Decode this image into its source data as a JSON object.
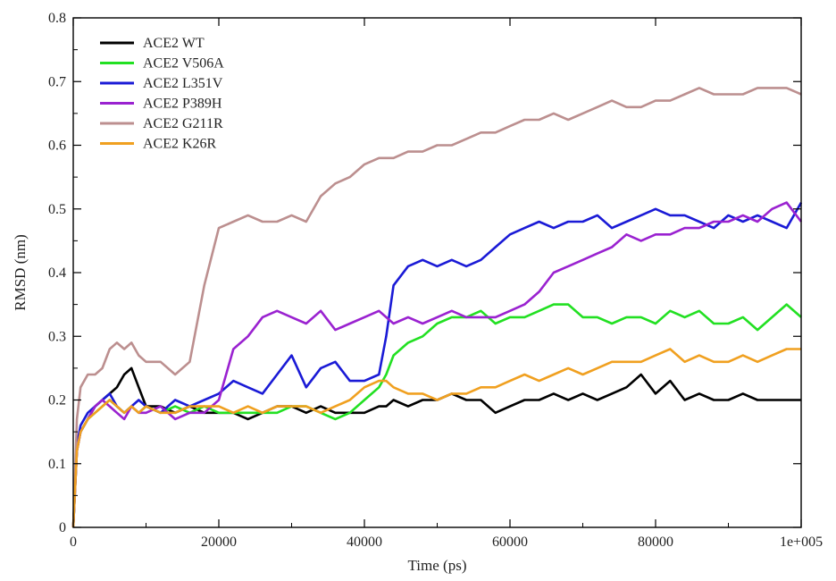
{
  "chart_data": {
    "type": "line",
    "title": "",
    "xlabel": "Time (ps)",
    "ylabel": "RMSD (nm)",
    "xlim": [
      0,
      100000
    ],
    "ylim": [
      0,
      0.8
    ],
    "x_ticks": [
      0,
      20000,
      40000,
      60000,
      80000,
      100000
    ],
    "x_tick_labels": [
      "0",
      "20000",
      "40000",
      "60000",
      "80000",
      "1e+005"
    ],
    "y_ticks": [
      0,
      0.1,
      0.2,
      0.3,
      0.4,
      0.5,
      0.6,
      0.7,
      0.8
    ],
    "y_tick_labels": [
      "0",
      "0.1",
      "0.2",
      "0.3",
      "0.4",
      "0.5",
      "0.6",
      "0.7",
      "0.8"
    ],
    "grid": false,
    "legend_position": "top-left",
    "x": [
      0,
      500,
      1000,
      2000,
      3000,
      4000,
      5000,
      6000,
      7000,
      8000,
      9000,
      10000,
      12000,
      14000,
      16000,
      18000,
      20000,
      22000,
      24000,
      26000,
      28000,
      30000,
      32000,
      34000,
      36000,
      38000,
      40000,
      42000,
      43000,
      44000,
      46000,
      48000,
      50000,
      52000,
      54000,
      56000,
      58000,
      60000,
      62000,
      64000,
      66000,
      68000,
      70000,
      72000,
      74000,
      76000,
      78000,
      80000,
      82000,
      84000,
      86000,
      88000,
      90000,
      92000,
      94000,
      96000,
      98000,
      100000
    ],
    "series": [
      {
        "name": "ACE2 WT",
        "color": "#000000",
        "values": [
          0.0,
          0.12,
          0.15,
          0.17,
          0.19,
          0.2,
          0.21,
          0.22,
          0.24,
          0.25,
          0.22,
          0.19,
          0.19,
          0.18,
          0.19,
          0.18,
          0.18,
          0.18,
          0.17,
          0.18,
          0.19,
          0.19,
          0.18,
          0.19,
          0.18,
          0.18,
          0.18,
          0.19,
          0.19,
          0.2,
          0.19,
          0.2,
          0.2,
          0.21,
          0.2,
          0.2,
          0.18,
          0.19,
          0.2,
          0.2,
          0.21,
          0.2,
          0.21,
          0.2,
          0.21,
          0.22,
          0.24,
          0.21,
          0.23,
          0.2,
          0.21,
          0.2,
          0.2,
          0.21,
          0.2,
          0.2,
          0.2,
          0.2
        ]
      },
      {
        "name": "ACE2 V506A",
        "color": "#22e022",
        "values": [
          0.0,
          0.13,
          0.15,
          0.17,
          0.18,
          0.19,
          0.2,
          0.19,
          0.18,
          0.19,
          0.18,
          0.19,
          0.18,
          0.19,
          0.18,
          0.19,
          0.18,
          0.18,
          0.18,
          0.18,
          0.18,
          0.19,
          0.19,
          0.18,
          0.17,
          0.18,
          0.2,
          0.22,
          0.24,
          0.27,
          0.29,
          0.3,
          0.32,
          0.33,
          0.33,
          0.34,
          0.32,
          0.33,
          0.33,
          0.34,
          0.35,
          0.35,
          0.33,
          0.33,
          0.32,
          0.33,
          0.33,
          0.32,
          0.34,
          0.33,
          0.34,
          0.32,
          0.32,
          0.33,
          0.31,
          0.33,
          0.35,
          0.33
        ]
      },
      {
        "name": "ACE2 L351V",
        "color": "#1a1ad6",
        "values": [
          0.0,
          0.13,
          0.16,
          0.18,
          0.19,
          0.2,
          0.21,
          0.19,
          0.18,
          0.19,
          0.2,
          0.19,
          0.18,
          0.2,
          0.19,
          0.2,
          0.21,
          0.23,
          0.22,
          0.21,
          0.24,
          0.27,
          0.22,
          0.25,
          0.26,
          0.23,
          0.23,
          0.24,
          0.3,
          0.38,
          0.41,
          0.42,
          0.41,
          0.42,
          0.41,
          0.42,
          0.44,
          0.46,
          0.47,
          0.48,
          0.47,
          0.48,
          0.48,
          0.49,
          0.47,
          0.48,
          0.49,
          0.5,
          0.49,
          0.49,
          0.48,
          0.47,
          0.49,
          0.48,
          0.49,
          0.48,
          0.47,
          0.51
        ]
      },
      {
        "name": "ACE2 P389H",
        "color": "#9a22d0",
        "values": [
          0.0,
          0.12,
          0.15,
          0.17,
          0.19,
          0.2,
          0.19,
          0.18,
          0.17,
          0.19,
          0.18,
          0.18,
          0.19,
          0.17,
          0.18,
          0.18,
          0.2,
          0.28,
          0.3,
          0.33,
          0.34,
          0.33,
          0.32,
          0.34,
          0.31,
          0.32,
          0.33,
          0.34,
          0.33,
          0.32,
          0.33,
          0.32,
          0.33,
          0.34,
          0.33,
          0.33,
          0.33,
          0.34,
          0.35,
          0.37,
          0.4,
          0.41,
          0.42,
          0.43,
          0.44,
          0.46,
          0.45,
          0.46,
          0.46,
          0.47,
          0.47,
          0.48,
          0.48,
          0.49,
          0.48,
          0.5,
          0.51,
          0.48
        ]
      },
      {
        "name": "ACE2 G211R",
        "color": "#bc8f8f",
        "values": [
          0.0,
          0.17,
          0.22,
          0.24,
          0.24,
          0.25,
          0.28,
          0.29,
          0.28,
          0.29,
          0.27,
          0.26,
          0.26,
          0.24,
          0.26,
          0.38,
          0.47,
          0.48,
          0.49,
          0.48,
          0.48,
          0.49,
          0.48,
          0.52,
          0.54,
          0.55,
          0.57,
          0.58,
          0.58,
          0.58,
          0.59,
          0.59,
          0.6,
          0.6,
          0.61,
          0.62,
          0.62,
          0.63,
          0.64,
          0.64,
          0.65,
          0.64,
          0.65,
          0.66,
          0.67,
          0.66,
          0.66,
          0.67,
          0.67,
          0.68,
          0.69,
          0.68,
          0.68,
          0.68,
          0.69,
          0.69,
          0.69,
          0.68
        ]
      },
      {
        "name": "ACE2 K26R",
        "color": "#f0a020",
        "values": [
          0.0,
          0.12,
          0.15,
          0.17,
          0.18,
          0.19,
          0.2,
          0.19,
          0.18,
          0.19,
          0.18,
          0.19,
          0.18,
          0.18,
          0.19,
          0.19,
          0.19,
          0.18,
          0.19,
          0.18,
          0.19,
          0.19,
          0.19,
          0.18,
          0.19,
          0.2,
          0.22,
          0.23,
          0.23,
          0.22,
          0.21,
          0.21,
          0.2,
          0.21,
          0.21,
          0.22,
          0.22,
          0.23,
          0.24,
          0.23,
          0.24,
          0.25,
          0.24,
          0.25,
          0.26,
          0.26,
          0.26,
          0.27,
          0.28,
          0.26,
          0.27,
          0.26,
          0.26,
          0.27,
          0.26,
          0.27,
          0.28,
          0.28
        ]
      }
    ]
  }
}
